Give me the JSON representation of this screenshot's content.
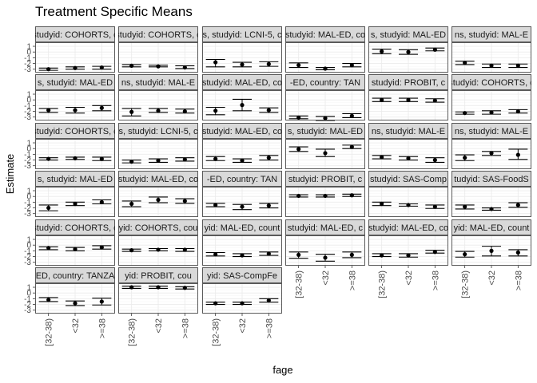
{
  "chart_data": {
    "type": "scatter",
    "title": "Treatment Specific Means",
    "xlabel": "fage",
    "ylabel": "Estimate",
    "categories": [
      "[32-38)",
      "<32",
      ">=38"
    ],
    "y_ticks": [
      1,
      0,
      -1,
      -2,
      -3
    ],
    "y_tick_labels": [
      "1",
      "0",
      "-1",
      "-2",
      "-3"
    ],
    "ylim": [
      -3.6,
      1.7
    ],
    "facet_layout": {
      "columns": 6,
      "rows": 6
    },
    "x_axis_columns": [
      {
        "panel_row": 5,
        "panel_col": 0
      },
      {
        "panel_row": 5,
        "panel_col": 1
      },
      {
        "panel_row": 5,
        "panel_col": 2
      },
      {
        "panel_row": 4,
        "panel_col": 3
      },
      {
        "panel_row": 4,
        "panel_col": 4
      },
      {
        "panel_row": 4,
        "panel_col": 5
      }
    ],
    "panels": [
      {
        "strip": "studyid: COHORTS, c",
        "estimates": [
          -3.0,
          -2.8,
          -2.7
        ],
        "lower": [
          -3.2,
          -3.0,
          -3.0
        ],
        "upper": [
          -2.8,
          -2.6,
          -2.5
        ]
      },
      {
        "strip": "studyid: COHORTS, c",
        "estimates": [
          -2.4,
          -2.5,
          -2.7
        ],
        "lower": [
          -2.6,
          -2.6,
          -2.9
        ],
        "upper": [
          -2.2,
          -2.3,
          -2.4
        ]
      },
      {
        "strip": "s, studyid: LCNI-5, c",
        "estimates": [
          -1.8,
          -2.2,
          -2.1
        ],
        "lower": [
          -2.6,
          -2.6,
          -2.5
        ],
        "upper": [
          -1.3,
          -1.8,
          -1.7
        ]
      },
      {
        "strip": "studyid: MAL-ED, co",
        "estimates": [
          -2.3,
          -2.9,
          -2.3
        ],
        "lower": [
          -2.7,
          -3.1,
          -2.6
        ],
        "upper": [
          -1.9,
          -2.7,
          -2.0
        ]
      },
      {
        "strip": "s, studyid: MAL-ED",
        "estimates": [
          0.1,
          0.0,
          0.4
        ],
        "lower": [
          -0.3,
          -0.4,
          0.2
        ],
        "upper": [
          0.5,
          0.4,
          0.7
        ]
      },
      {
        "strip": "ns, studyid: MAL-E",
        "estimates": [
          -1.9,
          -2.4,
          -2.4
        ],
        "lower": [
          -2.2,
          -2.7,
          -2.7
        ],
        "upper": [
          -1.6,
          -2.1,
          -2.1
        ]
      },
      {
        "strip": "s, studyid: MAL-ED",
        "estimates": [
          -1.8,
          -1.8,
          -1.4
        ],
        "lower": [
          -2.2,
          -2.3,
          -1.9
        ],
        "upper": [
          -1.5,
          -1.3,
          -1.0
        ]
      },
      {
        "strip": "ns, studyid: MAL-E",
        "estimates": [
          -2.1,
          -1.9,
          -2.0
        ],
        "lower": [
          -2.8,
          -2.2,
          -2.3
        ],
        "upper": [
          -1.5,
          -1.5,
          -1.6
        ]
      },
      {
        "strip": "studyid: MAL-ED, co",
        "estimates": [
          -1.9,
          -0.9,
          -1.8
        ],
        "lower": [
          -2.6,
          -1.9,
          -2.2
        ],
        "upper": [
          -1.3,
          0.1,
          -1.4
        ]
      },
      {
        "strip": "-ED, country: TAN",
        "estimates": [
          -3.1,
          -3.2,
          -2.8
        ],
        "lower": [
          -3.3,
          -3.6,
          -3.1
        ],
        "upper": [
          -2.8,
          -2.9,
          -2.4
        ]
      },
      {
        "strip": "studyid: PROBIT, c",
        "estimates": [
          0.0,
          0.0,
          -0.1
        ],
        "lower": [
          -0.3,
          -0.3,
          -0.4
        ],
        "upper": [
          0.3,
          0.3,
          0.2
        ]
      },
      {
        "strip": "studyid: COHORTS, c",
        "estimates": [
          -2.3,
          -2.2,
          -2.0
        ],
        "lower": [
          -2.5,
          -2.5,
          -2.3
        ],
        "upper": [
          -2.1,
          -1.9,
          -1.7
        ]
      },
      {
        "strip": "studyid: COHORTS, c",
        "estimates": [
          -1.8,
          -1.7,
          -1.8
        ],
        "lower": [
          -2.0,
          -1.9,
          -2.1
        ],
        "upper": [
          -1.6,
          -1.5,
          -1.5
        ]
      },
      {
        "strip": "s, studyid: LCNI-5, c",
        "estimates": [
          -2.3,
          -2.1,
          -1.9
        ],
        "lower": [
          -2.5,
          -2.4,
          -2.2
        ],
        "upper": [
          -2.0,
          -1.8,
          -1.6
        ]
      },
      {
        "strip": "studyid: MAL-ED, co",
        "estimates": [
          -1.8,
          -2.1,
          -1.6
        ],
        "lower": [
          -2.1,
          -2.4,
          -2.0
        ],
        "upper": [
          -1.4,
          -1.8,
          -1.2
        ]
      },
      {
        "strip": "s, studyid: MAL-ED",
        "estimates": [
          -0.1,
          -0.8,
          0.3
        ],
        "lower": [
          -0.5,
          -1.4,
          0.0
        ],
        "upper": [
          0.3,
          -0.1,
          0.6
        ]
      },
      {
        "strip": "ns, studyid: MAL-E",
        "estimates": [
          -1.5,
          -1.7,
          -2.0
        ],
        "lower": [
          -1.8,
          -2.0,
          -2.4
        ],
        "upper": [
          -1.2,
          -1.4,
          -1.6
        ]
      },
      {
        "strip": "ns, studyid: MAL-E",
        "estimates": [
          -1.6,
          -0.8,
          -1.1
        ],
        "lower": [
          -2.1,
          -1.2,
          -1.9
        ],
        "upper": [
          -1.1,
          -0.5,
          -0.1
        ]
      },
      {
        "strip": "s, studyid: MAL-ED",
        "estimates": [
          -2.0,
          -1.3,
          -1.0
        ],
        "lower": [
          -2.5,
          -1.6,
          -1.3
        ],
        "upper": [
          -1.5,
          -1.0,
          -0.6
        ]
      },
      {
        "strip": "studyid: MAL-ED, co",
        "estimates": [
          -1.3,
          -0.6,
          -0.8
        ],
        "lower": [
          -1.8,
          -1.1,
          -1.2
        ],
        "upper": [
          -0.8,
          -0.1,
          -0.4
        ]
      },
      {
        "strip": "-ED, country: TAN",
        "estimates": [
          -1.5,
          -1.8,
          -1.6
        ],
        "lower": [
          -1.8,
          -2.3,
          -2.0
        ],
        "upper": [
          -1.2,
          -1.4,
          -1.2
        ]
      },
      {
        "strip": "studyid: PROBIT, c",
        "estimates": [
          0.1,
          0.1,
          0.2
        ],
        "lower": [
          -0.1,
          -0.1,
          0.0
        ],
        "upper": [
          0.3,
          0.3,
          0.4
        ]
      },
      {
        "strip": "studyid: SAS-Comp",
        "estimates": [
          -1.3,
          -1.5,
          -1.8
        ],
        "lower": [
          -1.6,
          -1.7,
          -2.1
        ],
        "upper": [
          -1.0,
          -1.3,
          -1.5
        ]
      },
      {
        "strip": "tudyid: SAS-FoodS",
        "estimates": [
          -1.8,
          -2.2,
          -1.5
        ],
        "lower": [
          -2.2,
          -2.4,
          -1.9
        ],
        "upper": [
          -1.5,
          -2.0,
          -1.1
        ]
      },
      {
        "strip": "studyid: COHORTS, c",
        "estimates": [
          -0.5,
          -0.7,
          -0.4
        ],
        "lower": [
          -0.8,
          -1.0,
          -0.7
        ],
        "upper": [
          -0.3,
          -0.4,
          -0.1
        ]
      },
      {
        "strip": "yid: COHORTS, cou",
        "estimates": [
          -0.9,
          -0.8,
          -0.8
        ],
        "lower": [
          -1.1,
          -1.0,
          -1.1
        ],
        "upper": [
          -0.7,
          -0.6,
          -0.6
        ]
      },
      {
        "strip": "yid: MAL-ED, count",
        "estimates": [
          -1.6,
          -1.8,
          -1.5
        ],
        "lower": [
          -1.9,
          -2.0,
          -1.8
        ],
        "upper": [
          -1.3,
          -1.5,
          -1.2
        ]
      },
      {
        "strip": "studyid: MAL-ED, c",
        "estimates": [
          -1.7,
          -2.2,
          -1.7
        ],
        "lower": [
          -2.3,
          -2.8,
          -2.2
        ],
        "upper": [
          -1.2,
          -1.6,
          -1.2
        ]
      },
      {
        "strip": "studyid: MAL-ED, co",
        "estimates": [
          -1.8,
          -1.8,
          -1.2
        ],
        "lower": [
          -2.0,
          -2.1,
          -1.4
        ],
        "upper": [
          -1.5,
          -1.5,
          -0.9
        ]
      },
      {
        "strip": "yid: MAL-ED, count",
        "estimates": [
          -1.6,
          -1.0,
          -1.3
        ],
        "lower": [
          -2.1,
          -1.9,
          -1.9
        ],
        "upper": [
          -1.1,
          -0.2,
          -0.8
        ]
      },
      {
        "strip": "ED, country: TANZA",
        "estimates": [
          -1.2,
          -1.8,
          -1.5
        ],
        "lower": [
          -1.5,
          -2.2,
          -2.1
        ],
        "upper": [
          -0.8,
          -1.4,
          -0.9
        ]
      },
      {
        "strip": "yid: PROBIT, cou",
        "estimates": [
          1.0,
          1.0,
          0.9
        ],
        "lower": [
          0.8,
          0.8,
          0.7
        ],
        "upper": [
          1.2,
          1.2,
          1.1
        ]
      },
      {
        "strip": "yid: SAS-CompFe",
        "estimates": [
          -1.8,
          -1.8,
          -1.3
        ],
        "lower": [
          -2.0,
          -2.0,
          -1.6
        ],
        "upper": [
          -1.6,
          -1.6,
          -1.0
        ]
      }
    ]
  }
}
